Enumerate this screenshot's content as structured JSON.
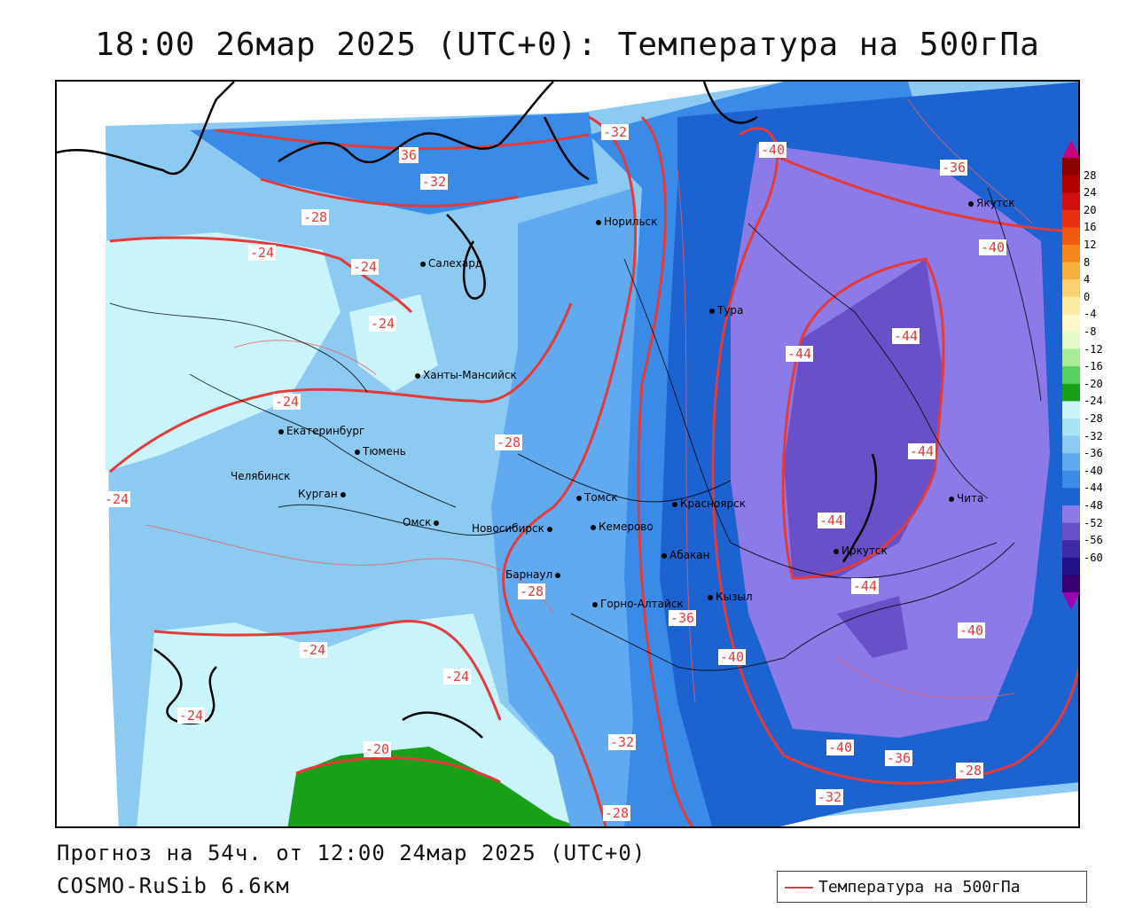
{
  "title": "18:00 26мар 2025 (UTC+0): Температура на 500гПа",
  "footer": {
    "forecast": "Прогноз на 54ч. от 12:00 24мар 2025 (UTC+0)",
    "model": "COSMO-RuSib 6.6км"
  },
  "legend": {
    "label": "Температура на 500гПа",
    "line_color": "#e43a3a"
  },
  "colorbar": {
    "ticks": [
      "28",
      "24",
      "20",
      "16",
      "12",
      "8",
      "4",
      "0",
      "-4",
      "-8",
      "-12",
      "-16",
      "-20",
      "-24",
      "-28",
      "-32",
      "-36",
      "-40",
      "-44",
      "-48",
      "-52",
      "-56",
      "-60"
    ],
    "colors": [
      "#8b0000",
      "#b00000",
      "#d01010",
      "#e63010",
      "#f05a10",
      "#f5871e",
      "#f8b040",
      "#fbd070",
      "#fbeaa0",
      "#fdf8cc",
      "#e4f8c8",
      "#a8ec98",
      "#58d060",
      "#18a018",
      "#c8f4fa",
      "#a8e4f6",
      "#8ccaf2",
      "#62aaf0",
      "#3a8ae8",
      "#1c62d0",
      "#8c7ae8",
      "#6a50c8",
      "#3c2aa8",
      "#20108a",
      "#380070"
    ],
    "top_arrow": "#c8007c",
    "bottom_arrow": "#a000b0"
  },
  "cities": [
    {
      "name": "Якутск"
    },
    {
      "name": "Норильск"
    },
    {
      "name": "Салехард"
    },
    {
      "name": "Тура"
    },
    {
      "name": "Ханты-Мансийск"
    },
    {
      "name": "Екатеринбург"
    },
    {
      "name": "Тюмень"
    },
    {
      "name": "Челябинск"
    },
    {
      "name": "Курган"
    },
    {
      "name": "Омск"
    },
    {
      "name": "Новосибирск"
    },
    {
      "name": "Томск"
    },
    {
      "name": "Кемерово"
    },
    {
      "name": "Красноярск"
    },
    {
      "name": "Абакан"
    },
    {
      "name": "Барнаул"
    },
    {
      "name": "Горно-Алтайск"
    },
    {
      "name": "Кызыл"
    },
    {
      "name": "Иркутск"
    },
    {
      "name": "Чита"
    }
  ],
  "contour_labels": [
    "36",
    "-32",
    "-32",
    "-40",
    "-36",
    "-28",
    "-24",
    "-24",
    "-24",
    "-40",
    "-44",
    "-44",
    "-24",
    "-44",
    "-28",
    "-24",
    "-44",
    "-28",
    "-44",
    "-36",
    "-40",
    "-40",
    "-24",
    "-24",
    "-24",
    "-20",
    "-32",
    "-40",
    "-36",
    "-28",
    "-32",
    "-28"
  ]
}
